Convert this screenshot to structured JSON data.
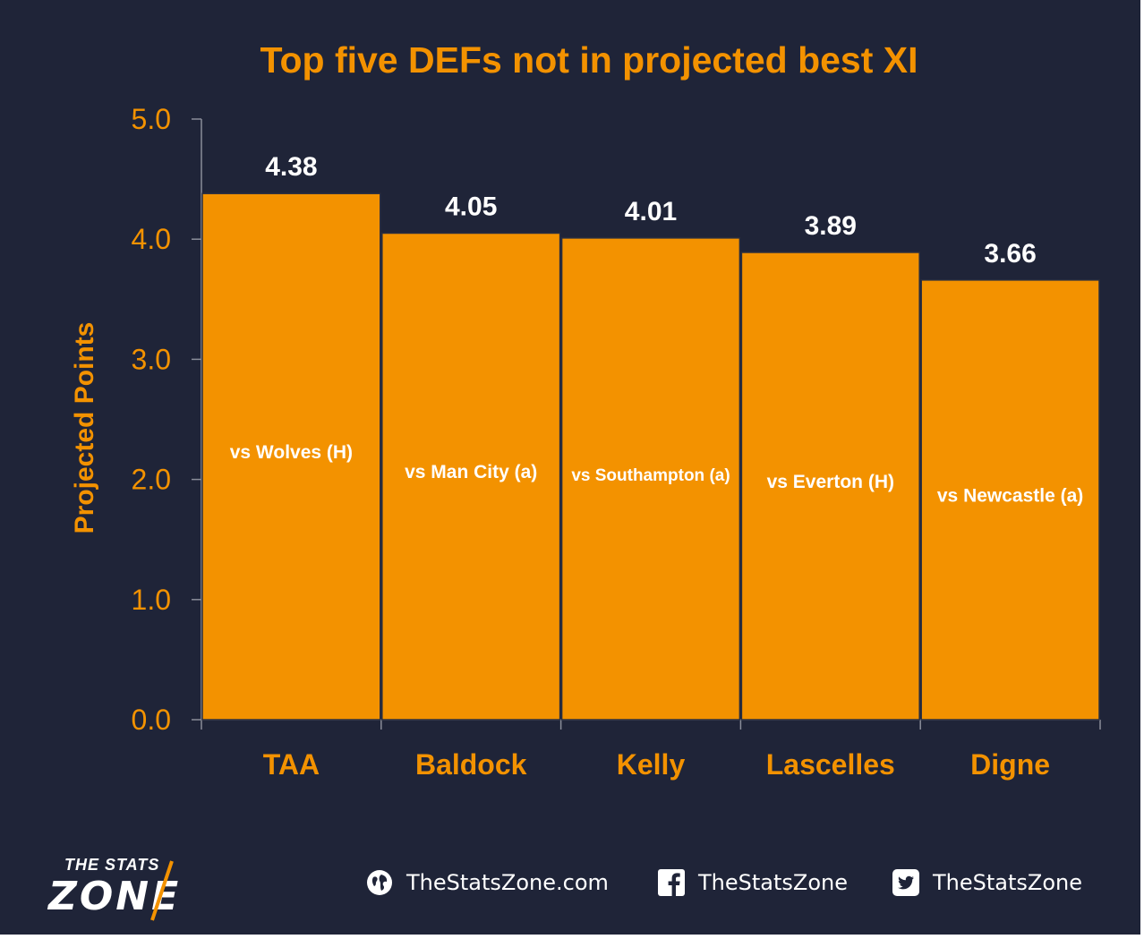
{
  "chart_data": {
    "type": "bar",
    "title": "Top five DEFs not in projected best XI",
    "xlabel": "",
    "ylabel": "Projected Points",
    "ylim": [
      0,
      5
    ],
    "yticks": [
      "0.0",
      "1.0",
      "2.0",
      "3.0",
      "4.0",
      "5.0"
    ],
    "categories": [
      "TAA",
      "Baldock",
      "Kelly",
      "Lascelles",
      "Digne"
    ],
    "values": [
      4.38,
      4.05,
      4.01,
      3.89,
      3.66
    ],
    "value_labels": [
      "4.38",
      "4.05",
      "4.01",
      "3.89",
      "3.66"
    ],
    "bar_annotations": [
      "vs Wolves (H)",
      "vs Man City (a)",
      "vs Southampton (a)",
      "vs Everton (H)",
      "vs Newcastle (a)"
    ],
    "bar_color": "#f39200",
    "text_color": "#f39200",
    "background": "#1f2438",
    "grid": false,
    "legend": "none"
  },
  "footer": {
    "logo_top": "THE STATS",
    "logo_main": "ZONE",
    "website": "TheStatsZone.com",
    "facebook": "TheStatsZone",
    "twitter": "TheStatsZone"
  },
  "icons": [
    "globe-icon",
    "facebook-icon",
    "twitter-icon"
  ]
}
